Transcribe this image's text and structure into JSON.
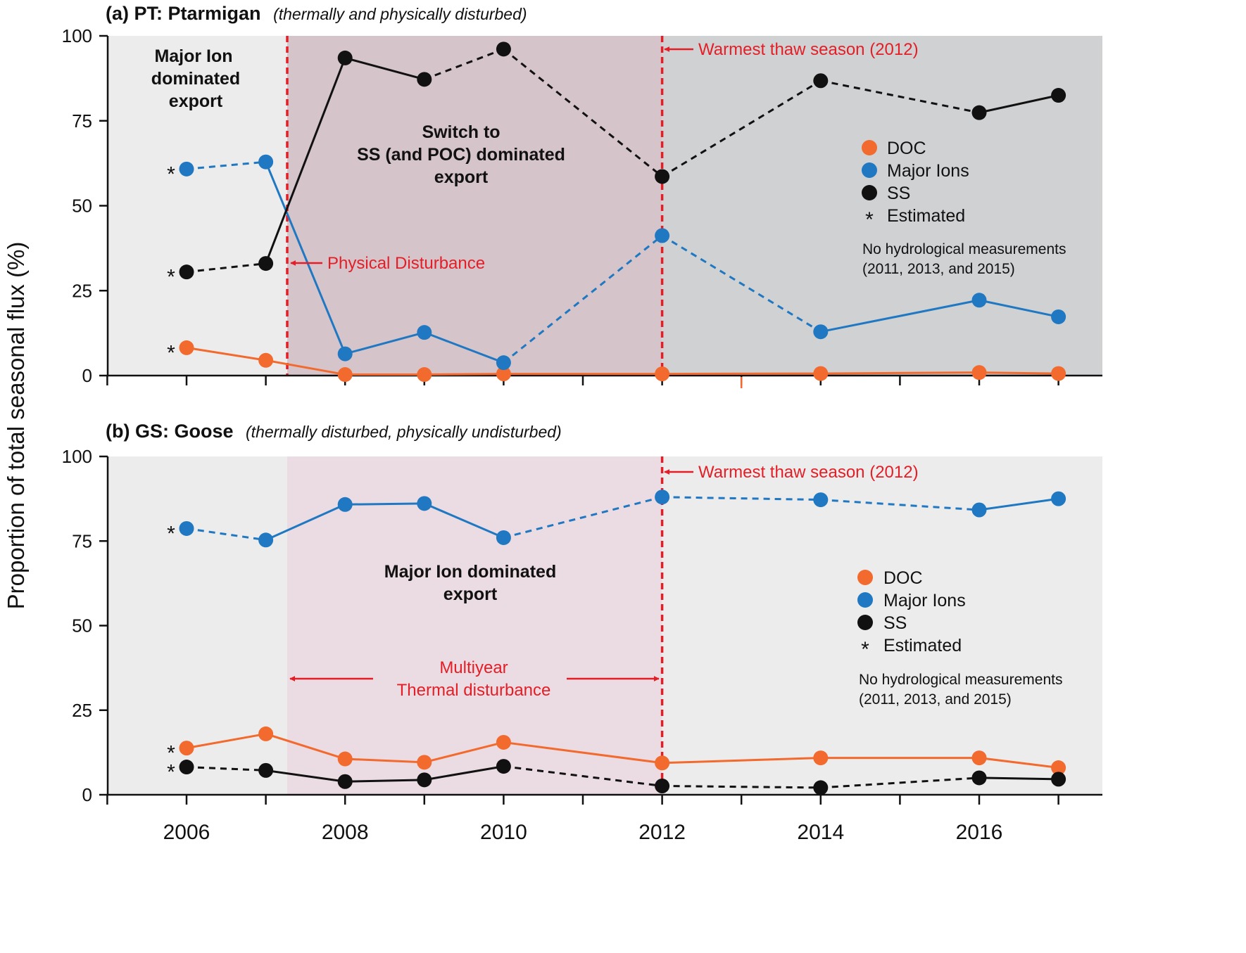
{
  "figure": {
    "ylabel": "Proportion of total seasonal flux (%)",
    "x_ticks": [
      2006,
      2007,
      2008,
      2009,
      2010,
      2011,
      2012,
      2013,
      2014,
      2015,
      2016,
      2017
    ],
    "x_tick_labels": [
      "2006",
      "2008",
      "2010",
      "2012",
      "2014",
      "2016"
    ],
    "colors": {
      "DOC": "#f26a2e",
      "Major Ions": "#1f78c1",
      "SS": "#111111",
      "annotation": "#e41e26"
    }
  },
  "chart_data": [
    {
      "type": "line",
      "panel": "a",
      "title_bold": "(a) PT: Ptarmigan",
      "title_italic": "(thermally and physically disturbed)",
      "ylim": [
        0,
        100
      ],
      "xlim": [
        2005,
        2017.6
      ],
      "y_ticks": [
        0,
        25,
        50,
        75,
        100
      ],
      "y_tick_labels": [
        "0",
        "25",
        "50",
        "75",
        "100"
      ],
      "regions": [
        {
          "name": "major-ion-period",
          "from": 2005,
          "to": 2007.27,
          "color": "#ececec"
        },
        {
          "name": "ss-period",
          "from": 2007.27,
          "to": 2012,
          "color": "#d6c4cb"
        },
        {
          "name": "post-2012-period",
          "from": 2012,
          "to": 2017.6,
          "color": "#d0d1d3"
        }
      ],
      "vlines": [
        2007.27,
        2012
      ],
      "series": [
        {
          "name": "DOC",
          "color": "#f26a2e",
          "points": [
            [
              2006,
              8.2
            ],
            [
              2007,
              4.5
            ],
            [
              2008,
              0.3
            ],
            [
              2009,
              0.3
            ],
            [
              2010,
              0.5
            ],
            [
              2012,
              0.5
            ],
            [
              2014,
              0.6
            ],
            [
              2016,
              0.9
            ],
            [
              2017,
              0.6
            ]
          ],
          "dashed_segments": []
        },
        {
          "name": "Major Ions",
          "color": "#1f78c1",
          "points": [
            [
              2006,
              60.8
            ],
            [
              2007,
              62.9
            ],
            [
              2008,
              6.4
            ],
            [
              2009,
              12.7
            ],
            [
              2010,
              3.8
            ],
            [
              2012,
              41.2
            ],
            [
              2014,
              12.9
            ],
            [
              2016,
              22.2
            ],
            [
              2017,
              17.3
            ]
          ],
          "dashed_segments": [
            0,
            4,
            5
          ]
        },
        {
          "name": "SS",
          "color": "#111111",
          "points": [
            [
              2006,
              30.5
            ],
            [
              2007,
              33.0
            ],
            [
              2008,
              93.5
            ],
            [
              2009,
              87.2
            ],
            [
              2010,
              96.1
            ],
            [
              2012,
              58.6
            ],
            [
              2014,
              86.8
            ],
            [
              2016,
              77.4
            ],
            [
              2017,
              82.5
            ]
          ],
          "dashed_segments": [
            0,
            3,
            4,
            5,
            6
          ]
        }
      ],
      "estimated_marks": [
        "*",
        "*",
        "*"
      ],
      "estimated_values": [
        60.8,
        30.5,
        8.2
      ],
      "annotations": {
        "major_ion_text": [
          "Major Ion",
          "dominated",
          "export"
        ],
        "switch_text": [
          "Switch to",
          "SS (and POC) dominated",
          "export"
        ],
        "physical_disturbance": "Physical Disturbance",
        "warmest": "Warmest thaw season (2012)"
      },
      "legend": {
        "entries": [
          "DOC",
          "Major Ions",
          "SS"
        ],
        "estimated_symbol": "*",
        "estimated_label": "Estimated",
        "note_lines": [
          "No hydrological measurements",
          "(2011, 2013, and 2015)"
        ]
      }
    },
    {
      "type": "line",
      "panel": "b",
      "title_bold": "(b) GS: Goose",
      "title_italic": "(thermally disturbed, physically undisturbed)",
      "ylim": [
        0,
        100
      ],
      "xlim": [
        2005,
        2017.6
      ],
      "y_ticks": [
        0,
        25,
        50,
        75,
        100
      ],
      "y_tick_labels": [
        "0",
        "25",
        "50",
        "75",
        "100"
      ],
      "regions": [
        {
          "name": "pre-disturbance",
          "from": 2005,
          "to": 2007.27,
          "color": "#ececec"
        },
        {
          "name": "thermal-disturbance",
          "from": 2007.27,
          "to": 2012,
          "color": "#ebdbe2"
        },
        {
          "name": "post-2012-period",
          "from": 2012,
          "to": 2017.6,
          "color": "#ececec"
        }
      ],
      "vlines": [
        2012
      ],
      "series": [
        {
          "name": "DOC",
          "color": "#f26a2e",
          "points": [
            [
              2006,
              13.8
            ],
            [
              2007,
              18.0
            ],
            [
              2008,
              10.6
            ],
            [
              2009,
              9.6
            ],
            [
              2010,
              15.5
            ],
            [
              2012,
              9.4
            ],
            [
              2014,
              10.9
            ],
            [
              2016,
              10.9
            ],
            [
              2017,
              8.0
            ]
          ],
          "dashed_segments": []
        },
        {
          "name": "Major Ions",
          "color": "#1f78c1",
          "points": [
            [
              2006,
              78.7
            ],
            [
              2007,
              75.3
            ],
            [
              2008,
              85.8
            ],
            [
              2009,
              86.1
            ],
            [
              2010,
              76.0
            ],
            [
              2012,
              88.0
            ],
            [
              2014,
              87.2
            ],
            [
              2016,
              84.2
            ],
            [
              2017,
              87.5
            ]
          ],
          "dashed_segments": [
            0,
            4,
            5,
            6
          ]
        },
        {
          "name": "SS",
          "color": "#111111",
          "points": [
            [
              2006,
              8.2
            ],
            [
              2007,
              7.2
            ],
            [
              2008,
              3.9
            ],
            [
              2009,
              4.4
            ],
            [
              2010,
              8.4
            ],
            [
              2012,
              2.6
            ],
            [
              2014,
              2.1
            ],
            [
              2016,
              5.0
            ],
            [
              2017,
              4.6
            ]
          ],
          "dashed_segments": [
            0,
            4,
            5,
            6
          ]
        }
      ],
      "estimated_marks": [
        "*",
        "*",
        "*"
      ],
      "estimated_values": [
        78.7,
        13.8,
        8.2
      ],
      "annotations": {
        "center_text": [
          "Major Ion dominated",
          "export"
        ],
        "thermal_text": [
          "Multiyear",
          "Thermal disturbance"
        ],
        "warmest": "Warmest thaw season (2012)"
      },
      "legend": {
        "entries": [
          "DOC",
          "Major Ions",
          "SS"
        ],
        "estimated_symbol": "*",
        "estimated_label": "Estimated",
        "note_lines": [
          "No hydrological measurements",
          "(2011, 2013, and 2015)"
        ]
      }
    }
  ]
}
